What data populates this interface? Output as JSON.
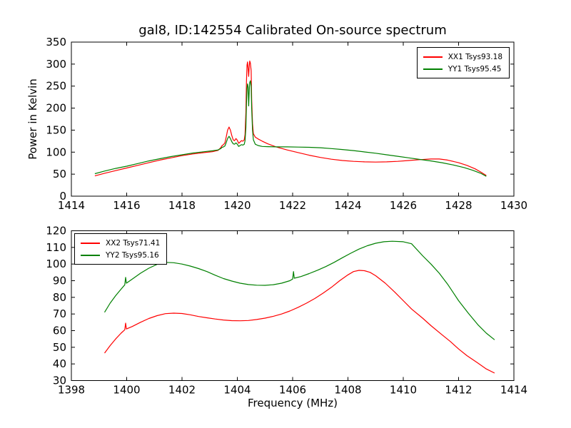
{
  "figure": {
    "background": "#ffffff",
    "frame_color": "#000000"
  },
  "chart_data": [
    {
      "type": "line",
      "title": "gal8, ID:142554 Calibrated On-source spectrum",
      "xlabel": "",
      "ylabel": "Power in Kelvin",
      "xlim": [
        1414,
        1430
      ],
      "ylim": [
        0,
        350
      ],
      "xticks": [
        1414,
        1416,
        1418,
        1420,
        1422,
        1424,
        1426,
        1428,
        1430
      ],
      "yticks": [
        0,
        50,
        100,
        150,
        200,
        250,
        300,
        350
      ],
      "grid": false,
      "legend_position": "upper right",
      "series": [
        {
          "name": "XX1 Tsys93.18",
          "color": "#ff0000",
          "points": [
            [
              1414.85,
              46
            ],
            [
              1415.2,
              52
            ],
            [
              1415.6,
              58
            ],
            [
              1416,
              64
            ],
            [
              1416.4,
              70
            ],
            [
              1416.8,
              76
            ],
            [
              1417.2,
              82
            ],
            [
              1417.6,
              87
            ],
            [
              1418,
              92
            ],
            [
              1418.4,
              96
            ],
            [
              1418.8,
              99
            ],
            [
              1419.1,
              101
            ],
            [
              1419.3,
              104
            ],
            [
              1419.4,
              110
            ],
            [
              1419.45,
              115
            ],
            [
              1419.5,
              117
            ],
            [
              1419.55,
              121
            ],
            [
              1419.6,
              135
            ],
            [
              1419.65,
              150
            ],
            [
              1419.7,
              157
            ],
            [
              1419.75,
              150
            ],
            [
              1419.8,
              138
            ],
            [
              1419.85,
              128
            ],
            [
              1419.9,
              126
            ],
            [
              1419.95,
              131
            ],
            [
              1420.0,
              127
            ],
            [
              1420.05,
              120
            ],
            [
              1420.1,
              123
            ],
            [
              1420.15,
              126
            ],
            [
              1420.2,
              125
            ],
            [
              1420.25,
              128
            ],
            [
              1420.28,
              140
            ],
            [
              1420.31,
              190
            ],
            [
              1420.33,
              260
            ],
            [
              1420.35,
              298
            ],
            [
              1420.37,
              305
            ],
            [
              1420.39,
              290
            ],
            [
              1420.41,
              272
            ],
            [
              1420.43,
              295
            ],
            [
              1420.45,
              307
            ],
            [
              1420.47,
              303
            ],
            [
              1420.5,
              285
            ],
            [
              1420.52,
              220
            ],
            [
              1420.55,
              165
            ],
            [
              1420.58,
              142
            ],
            [
              1420.65,
              134
            ],
            [
              1420.75,
              130
            ],
            [
              1420.9,
              125
            ],
            [
              1421.1,
              119
            ],
            [
              1421.4,
              112
            ],
            [
              1421.8,
              105
            ],
            [
              1422.2,
              99
            ],
            [
              1422.6,
              93
            ],
            [
              1423,
              88
            ],
            [
              1423.4,
              84
            ],
            [
              1423.8,
              81
            ],
            [
              1424.2,
              79
            ],
            [
              1424.6,
              78
            ],
            [
              1425,
              77.5
            ],
            [
              1425.4,
              78
            ],
            [
              1425.8,
              79
            ],
            [
              1426.2,
              81
            ],
            [
              1426.6,
              83
            ],
            [
              1427,
              84.5
            ],
            [
              1427.3,
              84.5
            ],
            [
              1427.6,
              82
            ],
            [
              1428,
              76
            ],
            [
              1428.3,
              70
            ],
            [
              1428.6,
              62
            ],
            [
              1428.8,
              55
            ],
            [
              1429,
              47
            ]
          ]
        },
        {
          "name": "YY1 Tsys95.45",
          "color": "#008000",
          "points": [
            [
              1414.85,
              51
            ],
            [
              1415.2,
              57
            ],
            [
              1415.6,
              63
            ],
            [
              1416,
              68
            ],
            [
              1416.4,
              74
            ],
            [
              1416.8,
              80
            ],
            [
              1417.2,
              85
            ],
            [
              1417.6,
              90
            ],
            [
              1418,
              94
            ],
            [
              1418.4,
              98
            ],
            [
              1418.8,
              101
            ],
            [
              1419.1,
              103
            ],
            [
              1419.3,
              105
            ],
            [
              1419.4,
              108
            ],
            [
              1419.45,
              111
            ],
            [
              1419.5,
              112
            ],
            [
              1419.55,
              114
            ],
            [
              1419.6,
              122
            ],
            [
              1419.65,
              131
            ],
            [
              1419.7,
              136
            ],
            [
              1419.75,
              131
            ],
            [
              1419.8,
              124
            ],
            [
              1419.85,
              119
            ],
            [
              1419.9,
              118
            ],
            [
              1419.95,
              121
            ],
            [
              1420.0,
              118
            ],
            [
              1420.05,
              113
            ],
            [
              1420.1,
              115
            ],
            [
              1420.15,
              117
            ],
            [
              1420.2,
              116
            ],
            [
              1420.25,
              118
            ],
            [
              1420.28,
              126
            ],
            [
              1420.31,
              155
            ],
            [
              1420.33,
              210
            ],
            [
              1420.35,
              245
            ],
            [
              1420.37,
              255
            ],
            [
              1420.39,
              248
            ],
            [
              1420.41,
              205
            ],
            [
              1420.43,
              240
            ],
            [
              1420.45,
              258
            ],
            [
              1420.47,
              262
            ],
            [
              1420.5,
              250
            ],
            [
              1420.52,
              200
            ],
            [
              1420.55,
              150
            ],
            [
              1420.58,
              128
            ],
            [
              1420.65,
              118
            ],
            [
              1420.75,
              115
            ],
            [
              1420.9,
              113
            ],
            [
              1421.1,
              112.5
            ],
            [
              1421.4,
              112
            ],
            [
              1421.8,
              112
            ],
            [
              1422.2,
              111.5
            ],
            [
              1422.6,
              111
            ],
            [
              1423,
              110
            ],
            [
              1423.4,
              108
            ],
            [
              1423.8,
              106
            ],
            [
              1424.2,
              103.5
            ],
            [
              1424.6,
              100.5
            ],
            [
              1425,
              97.5
            ],
            [
              1425.4,
              94
            ],
            [
              1425.8,
              90.5
            ],
            [
              1426.2,
              87
            ],
            [
              1426.6,
              83.5
            ],
            [
              1427,
              80
            ],
            [
              1427.4,
              76
            ],
            [
              1427.8,
              71
            ],
            [
              1428.2,
              65
            ],
            [
              1428.5,
              59
            ],
            [
              1428.8,
              52
            ],
            [
              1429,
              45
            ]
          ]
        }
      ]
    },
    {
      "type": "line",
      "title": "",
      "xlabel": "Frequency (MHz)",
      "ylabel": "",
      "xlim": [
        1398,
        1414
      ],
      "ylim": [
        30,
        120
      ],
      "xticks": [
        1398,
        1400,
        1402,
        1404,
        1406,
        1408,
        1410,
        1412,
        1414
      ],
      "yticks": [
        30,
        40,
        50,
        60,
        70,
        80,
        90,
        100,
        110,
        120
      ],
      "grid": false,
      "legend_position": "upper left",
      "series": [
        {
          "name": "XX2 Tsys71.41",
          "color": "#ff0000",
          "points": [
            [
              1399.2,
              46.5
            ],
            [
              1399.4,
              51
            ],
            [
              1399.6,
              55
            ],
            [
              1399.8,
              58.5
            ],
            [
              1399.93,
              60.5
            ],
            [
              1399.96,
              64.5
            ],
            [
              1399.99,
              61
            ],
            [
              1400.2,
              62.5
            ],
            [
              1400.5,
              65
            ],
            [
              1400.8,
              67.3
            ],
            [
              1401.1,
              69
            ],
            [
              1401.4,
              70.2
            ],
            [
              1401.7,
              70.5
            ],
            [
              1402,
              70.3
            ],
            [
              1402.3,
              69.5
            ],
            [
              1402.6,
              68.5
            ],
            [
              1402.9,
              67.7
            ],
            [
              1403.2,
              67
            ],
            [
              1403.5,
              66.4
            ],
            [
              1403.8,
              66
            ],
            [
              1404.1,
              65.9
            ],
            [
              1404.4,
              66.1
            ],
            [
              1404.7,
              66.7
            ],
            [
              1405,
              67.5
            ],
            [
              1405.3,
              68.6
            ],
            [
              1405.6,
              70
            ],
            [
              1405.9,
              71.8
            ],
            [
              1406.2,
              74
            ],
            [
              1406.5,
              76.5
            ],
            [
              1406.8,
              79.3
            ],
            [
              1407.1,
              82.5
            ],
            [
              1407.4,
              86
            ],
            [
              1407.7,
              90
            ],
            [
              1408,
              93.5
            ],
            [
              1408.2,
              95.5
            ],
            [
              1408.4,
              96.2
            ],
            [
              1408.6,
              96
            ],
            [
              1408.8,
              95
            ],
            [
              1409,
              93
            ],
            [
              1409.35,
              88.5
            ],
            [
              1409.7,
              83
            ],
            [
              1410,
              78
            ],
            [
              1410.3,
              73
            ],
            [
              1410.7,
              67.5
            ],
            [
              1411,
              63
            ],
            [
              1411.4,
              57.5
            ],
            [
              1411.7,
              53.5
            ],
            [
              1412,
              49
            ],
            [
              1412.3,
              45
            ],
            [
              1412.7,
              40.5
            ],
            [
              1413,
              37
            ],
            [
              1413.3,
              34.5
            ]
          ]
        },
        {
          "name": "YY2 Tsys95.16",
          "color": "#008000",
          "points": [
            [
              1399.2,
              71
            ],
            [
              1399.4,
              76.5
            ],
            [
              1399.6,
              81
            ],
            [
              1399.8,
              85
            ],
            [
              1399.93,
              87.5
            ],
            [
              1399.96,
              92
            ],
            [
              1399.99,
              88.5
            ],
            [
              1400.2,
              91
            ],
            [
              1400.5,
              94.5
            ],
            [
              1400.8,
              97.5
            ],
            [
              1401.1,
              99.8
            ],
            [
              1401.4,
              101
            ],
            [
              1401.7,
              100.8
            ],
            [
              1402,
              100
            ],
            [
              1402.3,
              98.8
            ],
            [
              1402.6,
              97.3
            ],
            [
              1402.9,
              95.5
            ],
            [
              1403.2,
              93.3
            ],
            [
              1403.5,
              91.3
            ],
            [
              1403.8,
              89.8
            ],
            [
              1404.1,
              88.5
            ],
            [
              1404.4,
              87.7
            ],
            [
              1404.7,
              87.3
            ],
            [
              1405,
              87.2
            ],
            [
              1405.3,
              87.6
            ],
            [
              1405.6,
              88.5
            ],
            [
              1405.9,
              90
            ],
            [
              1406,
              91
            ],
            [
              1406.03,
              95.5
            ],
            [
              1406.06,
              91.5
            ],
            [
              1406.3,
              92.5
            ],
            [
              1406.6,
              94.3
            ],
            [
              1406.9,
              96.3
            ],
            [
              1407.2,
              98.5
            ],
            [
              1407.5,
              101
            ],
            [
              1407.8,
              103.8
            ],
            [
              1408.1,
              106.5
            ],
            [
              1408.4,
              109
            ],
            [
              1408.7,
              111
            ],
            [
              1409,
              112.5
            ],
            [
              1409.3,
              113.4
            ],
            [
              1409.6,
              113.7
            ],
            [
              1410,
              113.4
            ],
            [
              1410.3,
              112.2
            ],
            [
              1410.7,
              105
            ],
            [
              1411,
              100
            ],
            [
              1411.3,
              94.5
            ],
            [
              1411.6,
              88
            ],
            [
              1412,
              78
            ],
            [
              1412.35,
              70.5
            ],
            [
              1412.7,
              63.5
            ],
            [
              1413,
              58.5
            ],
            [
              1413.3,
              54.5
            ]
          ]
        }
      ]
    }
  ]
}
